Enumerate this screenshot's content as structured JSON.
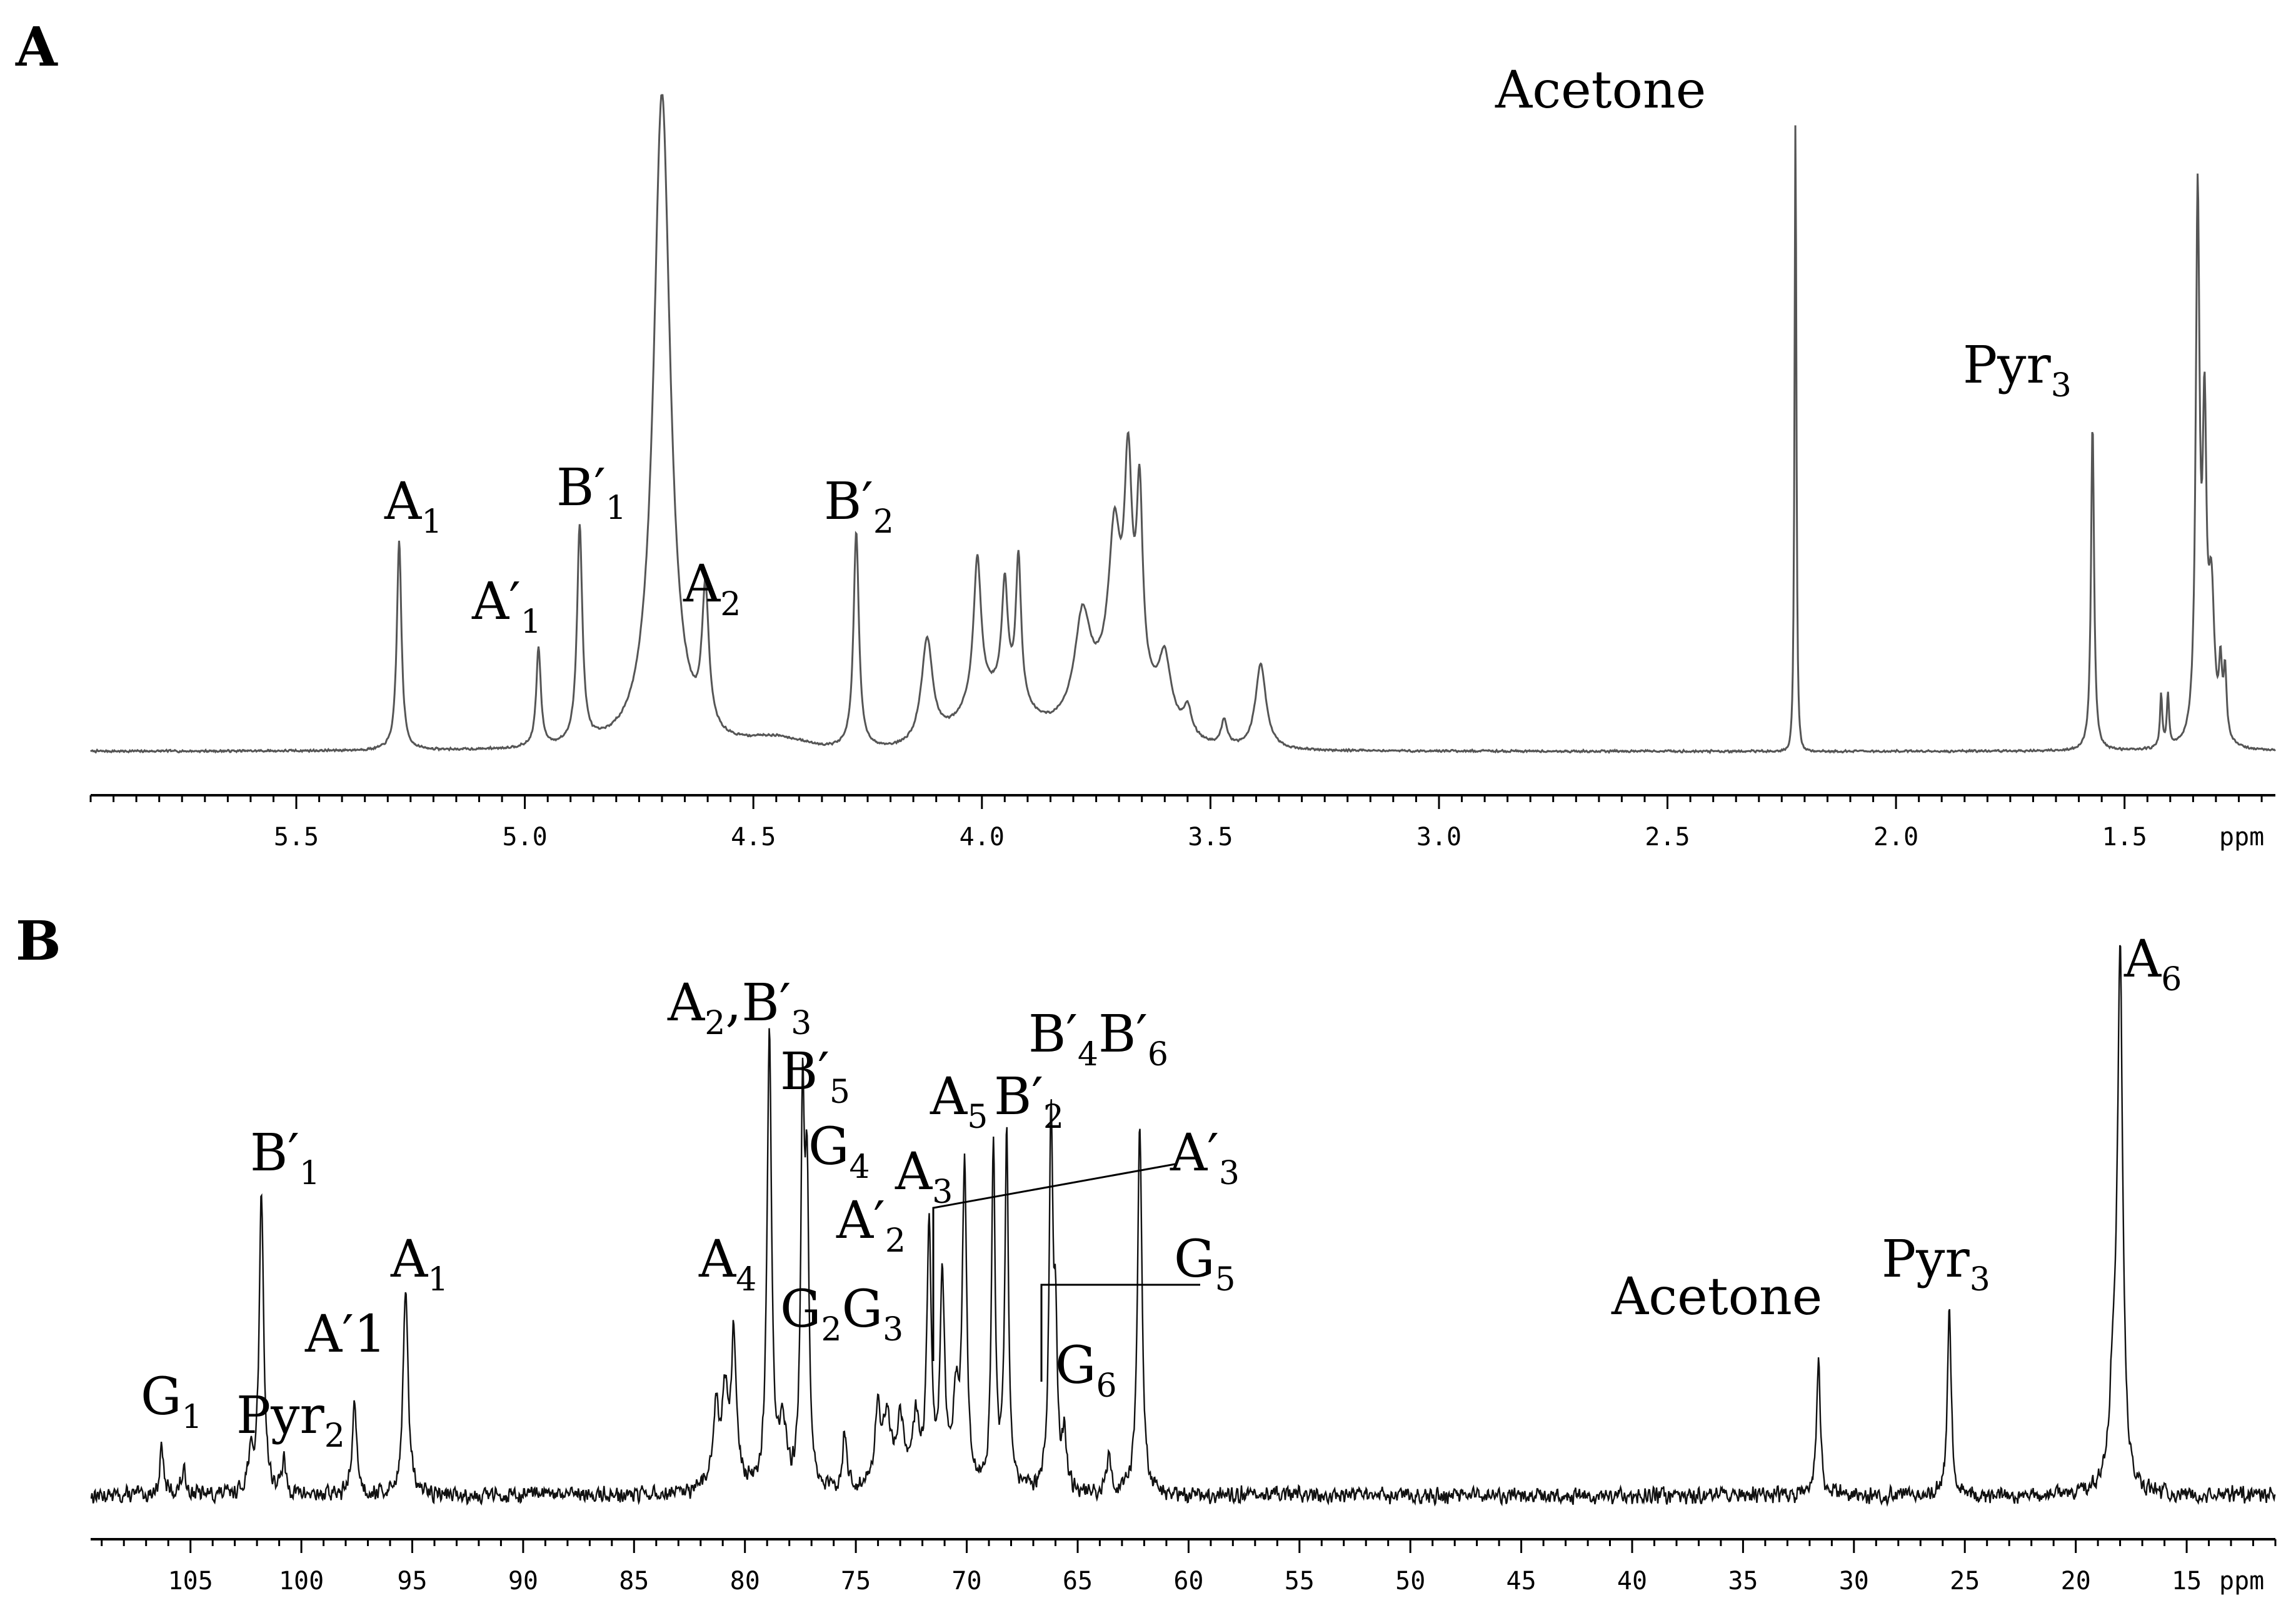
{
  "chart_data": [
    {
      "panel_label": "A",
      "type": "line",
      "x_reversed": true,
      "xlim": [
        5.95,
        1.17
      ],
      "axis_unit": "ppm",
      "x_ticks": [
        5.5,
        5.0,
        4.5,
        4.0,
        3.5,
        3.0,
        2.5,
        2.0,
        1.5
      ],
      "x_tick_labels": [
        "5.5",
        "5.0",
        "4.5",
        "4.0",
        "3.5",
        "3.0",
        "2.5",
        "2.0",
        "1.5"
      ],
      "minor_step": 0.05,
      "ylim": [
        -0.03,
        1.0
      ],
      "noise_level": 0.002,
      "peaks": [
        {
          "x": 5.275,
          "height": 0.32,
          "width": 0.006
        },
        {
          "x": 4.97,
          "height": 0.15,
          "width": 0.006
        },
        {
          "x": 4.88,
          "height": 0.33,
          "width": 0.007
        },
        {
          "x": 4.7,
          "height": 1.0,
          "width": 0.022
        },
        {
          "x": 4.605,
          "height": 0.21,
          "width": 0.009
        },
        {
          "x": 4.275,
          "height": 0.33,
          "width": 0.007
        },
        {
          "x": 4.12,
          "height": 0.16,
          "width": 0.015
        },
        {
          "x": 4.01,
          "height": 0.22,
          "width": 0.01
        },
        {
          "x": 3.95,
          "height": 0.17,
          "width": 0.008
        },
        {
          "x": 3.92,
          "height": 0.22,
          "width": 0.007
        },
        {
          "x": 3.78,
          "height": 0.14,
          "width": 0.02
        },
        {
          "x": 3.71,
          "height": 0.22,
          "width": 0.015
        },
        {
          "x": 3.68,
          "height": 0.31,
          "width": 0.01
        },
        {
          "x": 3.655,
          "height": 0.28,
          "width": 0.008
        },
        {
          "x": 3.6,
          "height": 0.09,
          "width": 0.015
        },
        {
          "x": 3.55,
          "height": 0.04,
          "width": 0.01
        },
        {
          "x": 3.47,
          "height": 0.04,
          "width": 0.008
        },
        {
          "x": 3.39,
          "height": 0.13,
          "width": 0.014
        },
        {
          "x": 2.22,
          "height": 1.0,
          "width": 0.0025
        },
        {
          "x": 2.22,
          "height": -0.04,
          "width": 0.012
        },
        {
          "x": 1.57,
          "height": 0.5,
          "width": 0.004
        },
        {
          "x": 1.42,
          "height": 0.08,
          "width": 0.003
        },
        {
          "x": 1.405,
          "height": 0.08,
          "width": 0.003
        },
        {
          "x": 1.34,
          "height": 0.82,
          "width": 0.005
        },
        {
          "x": 1.325,
          "height": 0.45,
          "width": 0.005
        },
        {
          "x": 1.31,
          "height": 0.22,
          "width": 0.008
        },
        {
          "x": 1.29,
          "height": 0.1,
          "width": 0.004
        },
        {
          "x": 1.28,
          "height": 0.1,
          "width": 0.004
        }
      ],
      "bumps": [
        {
          "x": 3.97,
          "height": 0.08,
          "width": 0.1
        },
        {
          "x": 3.7,
          "height": 0.1,
          "width": 0.12
        },
        {
          "x": 4.45,
          "height": 0.015,
          "width": 0.08
        }
      ],
      "annotations": [
        {
          "base": "A",
          "sup": "",
          "sub": "1",
          "x": 5.275
        },
        {
          "base": "A′",
          "sup": "",
          "sub": "1",
          "x": 4.97
        },
        {
          "base": "B′",
          "sup": "",
          "sub": "1",
          "x": 4.88
        },
        {
          "base": "A",
          "sup": "",
          "sub": "2",
          "x": 4.605
        },
        {
          "base": "B′",
          "sup": "",
          "sub": "2",
          "x": 4.275
        },
        {
          "base": "Acetone",
          "sup": "",
          "sub": "",
          "x": 2.22
        },
        {
          "base": "Pyr",
          "sup": "",
          "sub": "3",
          "x": 1.57
        }
      ]
    },
    {
      "panel_label": "B",
      "type": "line",
      "x_reversed": true,
      "xlim": [
        109.5,
        11.0
      ],
      "axis_unit": "ppm",
      "x_ticks": [
        105,
        100,
        95,
        90,
        85,
        80,
        75,
        70,
        65,
        60,
        55,
        50,
        45,
        40,
        35,
        30,
        25,
        20,
        15
      ],
      "x_tick_labels": [
        "105",
        "100",
        "95",
        "90",
        "85",
        "80",
        "75",
        "70",
        "65",
        "60",
        "55",
        "50",
        "45",
        "40",
        "35",
        "30",
        "25",
        "20",
        "15"
      ],
      "minor_step": 1,
      "ylim": [
        -0.08,
        1.0
      ],
      "noise_level": 0.018,
      "peaks": [
        {
          "x": 106.3,
          "height": 0.09,
          "width": 0.1
        },
        {
          "x": 105.3,
          "height": 0.04,
          "width": 0.15
        },
        {
          "x": 102.3,
          "height": 0.06,
          "width": 0.15
        },
        {
          "x": 101.8,
          "height": 0.55,
          "width": 0.12
        },
        {
          "x": 100.8,
          "height": 0.06,
          "width": 0.1
        },
        {
          "x": 97.6,
          "height": 0.17,
          "width": 0.12
        },
        {
          "x": 95.3,
          "height": 0.38,
          "width": 0.13
        },
        {
          "x": 81.3,
          "height": 0.13,
          "width": 0.15
        },
        {
          "x": 80.9,
          "height": 0.15,
          "width": 0.15
        },
        {
          "x": 80.5,
          "height": 0.26,
          "width": 0.13
        },
        {
          "x": 78.9,
          "height": 0.83,
          "width": 0.12
        },
        {
          "x": 78.3,
          "height": 0.11,
          "width": 0.2
        },
        {
          "x": 77.4,
          "height": 0.67,
          "width": 0.1
        },
        {
          "x": 77.2,
          "height": 0.52,
          "width": 0.1
        },
        {
          "x": 75.5,
          "height": 0.11,
          "width": 0.12
        },
        {
          "x": 74.0,
          "height": 0.12,
          "width": 0.15
        },
        {
          "x": 73.6,
          "height": 0.1,
          "width": 0.15
        },
        {
          "x": 73.0,
          "height": 0.09,
          "width": 0.15
        },
        {
          "x": 72.3,
          "height": 0.1,
          "width": 0.15
        },
        {
          "x": 71.7,
          "height": 0.46,
          "width": 0.12
        },
        {
          "x": 71.1,
          "height": 0.38,
          "width": 0.12
        },
        {
          "x": 70.5,
          "height": 0.16,
          "width": 0.15
        },
        {
          "x": 70.1,
          "height": 0.58,
          "width": 0.12
        },
        {
          "x": 68.8,
          "height": 0.62,
          "width": 0.1
        },
        {
          "x": 68.2,
          "height": 0.64,
          "width": 0.1
        },
        {
          "x": 66.2,
          "height": 0.66,
          "width": 0.1
        },
        {
          "x": 66.0,
          "height": 0.25,
          "width": 0.1
        },
        {
          "x": 65.6,
          "height": 0.09,
          "width": 0.12
        },
        {
          "x": 63.6,
          "height": 0.07,
          "width": 0.1
        },
        {
          "x": 62.2,
          "height": 0.68,
          "width": 0.12
        },
        {
          "x": 31.6,
          "height": 0.25,
          "width": 0.1
        },
        {
          "x": 25.7,
          "height": 0.35,
          "width": 0.1
        },
        {
          "x": 18.3,
          "height": 0.18,
          "width": 0.2
        },
        {
          "x": 18.0,
          "height": 0.95,
          "width": 0.14
        }
      ],
      "bumps": [
        {
          "x": 73.2,
          "height": 0.05,
          "width": 1.3
        },
        {
          "x": 80.9,
          "height": 0.03,
          "width": 0.9
        }
      ],
      "annotations": [
        {
          "base": "G",
          "sup": "",
          "sub": "1",
          "x": 106.3
        },
        {
          "base": "Pyr",
          "sup": "",
          "sub": "2",
          "x": 100.8
        },
        {
          "base": "B′",
          "sup": "",
          "sub": "1",
          "x": 101.8
        },
        {
          "base": "A′1",
          "sup": "",
          "sub": "",
          "x": 97.6
        },
        {
          "base": "A",
          "sup": "",
          "sub": "1",
          "x": 95.3
        },
        {
          "base": "A",
          "sup": "",
          "sub": "4",
          "x": 80.5
        },
        {
          "base": "A",
          "sup": "",
          "sub": "2",
          "after": ",B′",
          "after_sub": "3",
          "x": 78.9
        },
        {
          "base": "B′",
          "sup": "",
          "sub": "5",
          "x": 77.4
        },
        {
          "base": "G",
          "sup": "",
          "sub": "4",
          "x": 77.2
        },
        {
          "base": "G",
          "sup": "",
          "sub": "2",
          "after": "G",
          "after_sub": "3",
          "x": 75.5
        },
        {
          "base": "A′",
          "sup": "",
          "sub": "2",
          "x": 71.7
        },
        {
          "base": "A",
          "sup": "",
          "sub": "3",
          "x": 71.1
        },
        {
          "base": "A",
          "sup": "",
          "sub": "5",
          "x": 70.1
        },
        {
          "base": "B′",
          "sup": "",
          "sub": "2",
          "x": 68.2
        },
        {
          "base": "A′",
          "sup": "",
          "sub": "3",
          "x": 71.1
        },
        {
          "base": "B′",
          "sup": "",
          "sub": "4",
          "after": "B′",
          "after_sub": "6",
          "x": 66.2
        },
        {
          "base": "G",
          "sup": "",
          "sub": "5",
          "x": 66.0
        },
        {
          "base": "G",
          "sup": "",
          "sub": "6",
          "x": 65.6
        },
        {
          "base": "Acetone",
          "sup": "",
          "sub": "",
          "x": 31.6
        },
        {
          "base": "Pyr",
          "sup": "",
          "sub": "3",
          "x": 25.7
        },
        {
          "base": "A",
          "sup": "",
          "sub": "6",
          "x": 18.0
        }
      ]
    }
  ]
}
